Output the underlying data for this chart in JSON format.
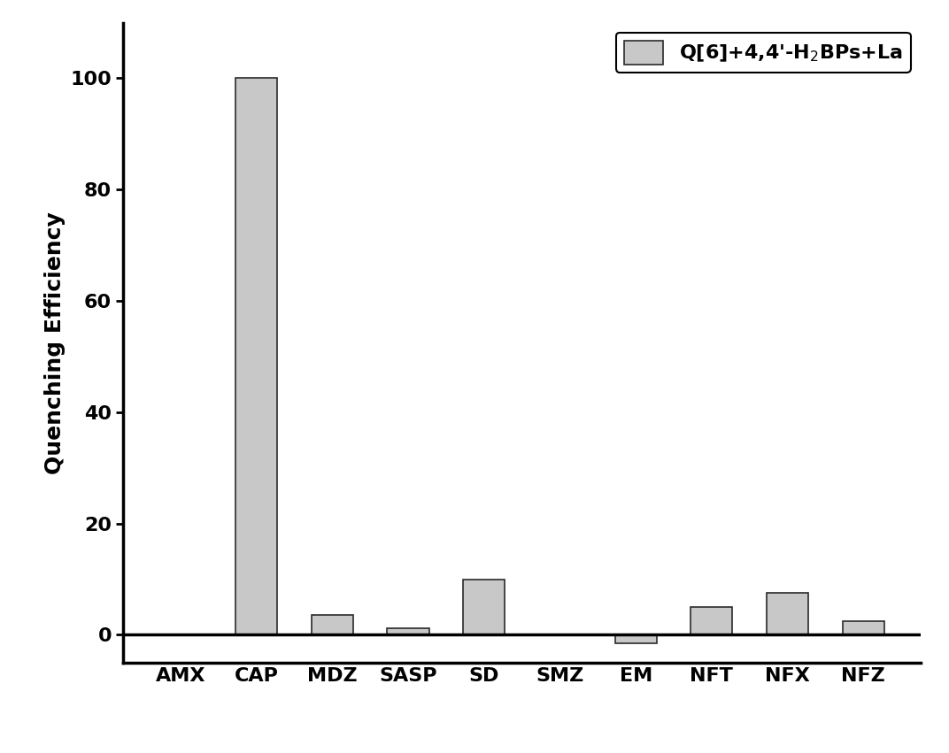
{
  "categories": [
    "AMX",
    "CAP",
    "MDZ",
    "SASP",
    "SD",
    "SMZ",
    "EM",
    "NFT",
    "NFX",
    "NFZ"
  ],
  "values": [
    0,
    100,
    3.5,
    1.2,
    10,
    0,
    -1.5,
    5,
    7.5,
    2.5
  ],
  "bar_color": "#c8c8c8",
  "bar_edgecolor": "#2a2a2a",
  "ylabel": "Quenching Efficiency",
  "ylim": [
    -5,
    110
  ],
  "yticks": [
    0,
    20,
    40,
    60,
    80,
    100
  ],
  "legend_label": "Q[6]+4,4'-H$_2$BPs+La",
  "legend_fontsize": 16,
  "tick_fontsize": 16,
  "ylabel_fontsize": 18,
  "bar_linewidth": 1.2,
  "bar_width": 0.55,
  "background_color": "#ffffff",
  "spine_linewidth": 2.5,
  "axhline_linewidth": 2.5
}
